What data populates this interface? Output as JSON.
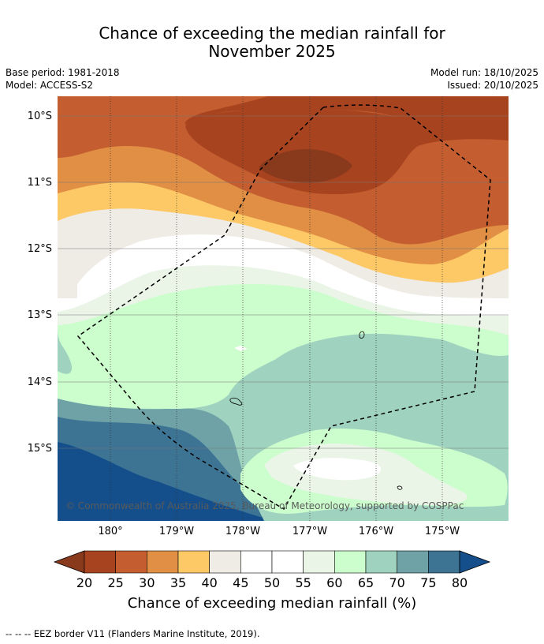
{
  "title_line1": "Chance of exceeding the median rainfall for",
  "title_line2": "November 2025",
  "base_period": "Base period: 1981-2018",
  "model": "Model: ACCESS-S2",
  "model_run": "Model run: 18/10/2025",
  "issued": "Issued: 20/10/2025",
  "map": {
    "lat_labels": [
      "10°S",
      "11°S",
      "12°S",
      "13°S",
      "14°S",
      "15°S"
    ],
    "lon_labels": [
      "180°",
      "179°W",
      "178°W",
      "177°W",
      "176°W",
      "175°W"
    ],
    "copyright": "© Commonwealth of Australia 2025, Bureau of Meteorology, supported by COSPPac",
    "region_description_colors": {
      "c20": "#a8431f",
      "c25": "#c45d2f",
      "c30": "#e08f45",
      "c35": "#fdc866",
      "c40": "#efebe5",
      "c45": "#ffffff",
      "c50": "#ffffff",
      "c55": "#eaf5e8",
      "c60": "#ccfdcc",
      "c65": "#9fd2bf",
      "c70": "#6ea2a6",
      "c75": "#3d7494",
      "c80": "#144f8b"
    }
  },
  "colorbar": {
    "ticks": [
      "20",
      "25",
      "30",
      "35",
      "40",
      "45",
      "50",
      "55",
      "60",
      "65",
      "70",
      "75",
      "80"
    ],
    "label": "Chance of exceeding median rainfall (%)",
    "colors": [
      "#a8431f",
      "#c45d2f",
      "#e08f45",
      "#fdc866",
      "#efebe5",
      "#ffffff",
      "#ffffff",
      "#eaf5e8",
      "#ccfdcc",
      "#9fd2bf",
      "#6ea2a6",
      "#3d7494"
    ],
    "under_color": "#8a3a1c",
    "over_color": "#144f8b"
  },
  "footnote": "--  --  -- EEZ border V11 (Flanders Marine Institute, 2019)."
}
